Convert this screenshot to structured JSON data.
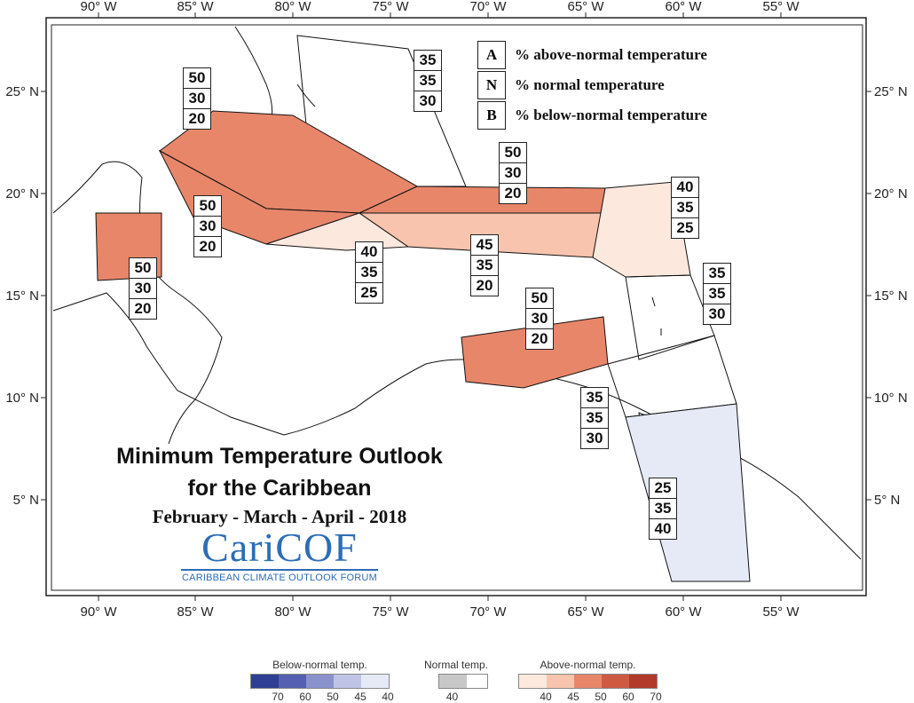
{
  "axes": {
    "lon_labels": [
      "90° W",
      "85° W",
      "80° W",
      "75° W",
      "70° W",
      "65° W",
      "60° W",
      "55° W"
    ],
    "lat_labels": [
      "25° N",
      "20° N",
      "15° N",
      "10° N",
      "5° N"
    ]
  },
  "key": {
    "rows": [
      {
        "letter": "A",
        "text": "% above-normal temperature"
      },
      {
        "letter": "N",
        "text": "% normal temperature"
      },
      {
        "letter": "B",
        "text": "% below-normal temperature"
      }
    ]
  },
  "regions": [
    {
      "id": "bahamas",
      "A": "35",
      "N": "35",
      "B": "30",
      "fill": "#ffffff"
    },
    {
      "id": "cuba",
      "A": "50",
      "N": "30",
      "B": "20",
      "fill": "#e8866a"
    },
    {
      "id": "cayman-jamaica",
      "A": "50",
      "N": "30",
      "B": "20",
      "fill": "#e8866a"
    },
    {
      "id": "belize",
      "A": "50",
      "N": "30",
      "B": "20",
      "fill": "#e8866a"
    },
    {
      "id": "jamaica-south",
      "A": "40",
      "N": "35",
      "B": "25",
      "fill": "#fde8de"
    },
    {
      "id": "hispaniola-puertorico",
      "A": "45",
      "N": "35",
      "B": "20",
      "fill": "#f8c4ae"
    },
    {
      "id": "turks-caicos-hispaniola-north",
      "A": "50",
      "N": "30",
      "B": "20",
      "fill": "#e8866a"
    },
    {
      "id": "leeward-islands",
      "A": "40",
      "N": "35",
      "B": "25",
      "fill": "#fde8de"
    },
    {
      "id": "barbados",
      "A": "35",
      "N": "35",
      "B": "30",
      "fill": "#ffffff"
    },
    {
      "id": "abc-islands",
      "A": "50",
      "N": "30",
      "B": "20",
      "fill": "#e8866a"
    },
    {
      "id": "trinidad-windwards",
      "A": "35",
      "N": "35",
      "B": "30",
      "fill": "#ffffff"
    },
    {
      "id": "guianas",
      "A": "25",
      "N": "35",
      "B": "40",
      "fill": "#e6eaf6"
    }
  ],
  "title": {
    "line1": "Minimum Temperature Outlook",
    "line2": "for the Caribbean",
    "season": "February - March - April - 2018"
  },
  "logo": {
    "name": "CariCOF",
    "subtitle": "CARIBBEAN CLIMATE OUTLOOK FORUM",
    "color": "#2d6db5"
  },
  "colorbar": {
    "below": {
      "title": "Below-normal temp.",
      "labels": [
        "70",
        "60",
        "50",
        "45",
        "40"
      ],
      "colors": [
        "#2f3f93",
        "#5560b0",
        "#8a92cc",
        "#bfc4e6",
        "#e6eaf6"
      ]
    },
    "normal": {
      "title": "Normal temp.",
      "labels": [
        "40"
      ],
      "colors": [
        "#c8c8c8"
      ]
    },
    "above": {
      "title": "Above-normal temp.",
      "labels": [
        "40",
        "45",
        "50",
        "60",
        "70"
      ],
      "colors": [
        "#fde8de",
        "#f8c4ae",
        "#e8866a",
        "#cf5a42",
        "#b23a2a"
      ]
    }
  }
}
